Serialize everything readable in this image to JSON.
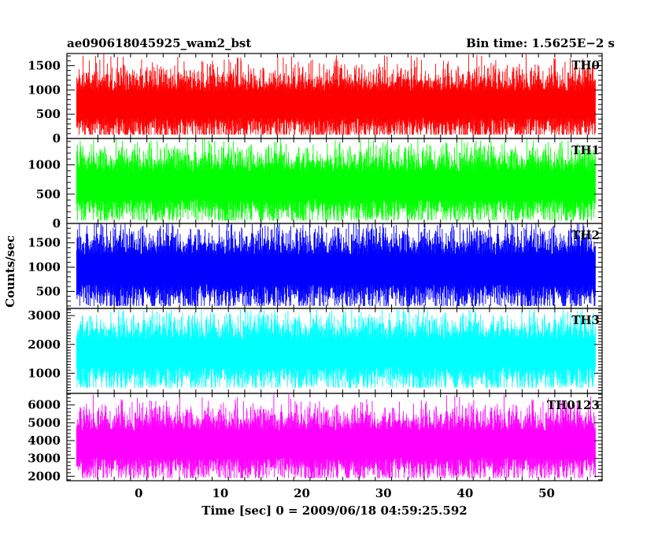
{
  "chart_data": {
    "type": "line",
    "title_left": "ae090618045925_wam2_bst",
    "title_right": "Bin time: 1.5625E−2 s",
    "xlabel": "Time [sec] 0 = 2009/06/18 04:59:25.592",
    "ylabel": "Counts/sec",
    "xlim": [
      -8.8,
      56.8
    ],
    "data_xrange": [
      -7.6,
      56.0
    ],
    "x_ticks": [
      0,
      10,
      20,
      30,
      40,
      50
    ],
    "x_tick_labels": [
      "0",
      "10",
      "20",
      "30",
      "40",
      "50"
    ],
    "panels": [
      {
        "name": "TH0",
        "color": "#ff0000",
        "ylim": [
          0,
          1750
        ],
        "y_ticks": [
          0,
          500,
          1000,
          1500
        ],
        "y_tick_labels": [
          "0",
          "500",
          "1000",
          "1500"
        ],
        "typical_range": [
          300,
          1300
        ],
        "peak": 1750,
        "min": 80,
        "mean": 700
      },
      {
        "name": "TH1",
        "color": "#00ff00",
        "ylim": [
          0,
          1450
        ],
        "y_ticks": [
          0,
          500,
          1000
        ],
        "y_tick_labels": [
          "0",
          "500",
          "1000"
        ],
        "typical_range": [
          250,
          1100
        ],
        "peak": 1450,
        "min": 50,
        "mean": 650
      },
      {
        "name": "TH2",
        "color": "#0000ff",
        "ylim": [
          150,
          1900
        ],
        "y_ticks": [
          500,
          1000,
          1500
        ],
        "y_tick_labels": [
          "500",
          "1000",
          "1500"
        ],
        "typical_range": [
          400,
          1500
        ],
        "peak": 1900,
        "min": 200,
        "mean": 950
      },
      {
        "name": "TH3",
        "color": "#00ffff",
        "ylim": [
          300,
          3250
        ],
        "y_ticks": [
          1000,
          2000,
          3000
        ],
        "y_tick_labels": [
          "1000",
          "2000",
          "3000"
        ],
        "typical_range": [
          900,
          2600
        ],
        "peak": 3200,
        "min": 500,
        "mean": 1700
      },
      {
        "name": "TH0123",
        "color": "#ff00ff",
        "ylim": [
          1750,
          6650
        ],
        "y_ticks": [
          2000,
          3000,
          4000,
          5000,
          6000
        ],
        "y_tick_labels": [
          "2000",
          "3000",
          "4000",
          "5000",
          "6000"
        ],
        "typical_range": [
          2500,
          5200
        ],
        "peak": 6600,
        "min": 1900,
        "mean": 3800
      }
    ],
    "grid": false,
    "legend": "panel labels top-right"
  }
}
